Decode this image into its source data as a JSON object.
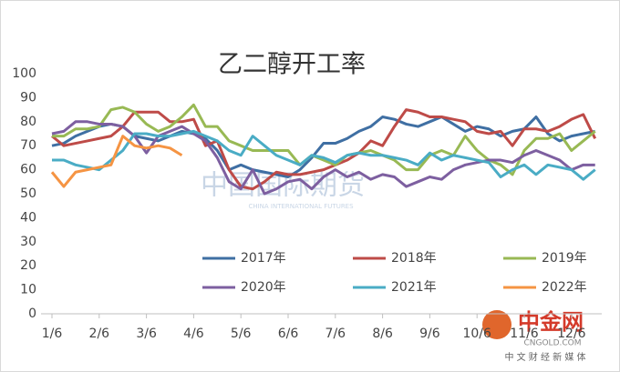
{
  "chart_data": {
    "type": "line",
    "title": "乙二醇开工率",
    "categories": [
      "1/6",
      null,
      null,
      null,
      "2/6",
      null,
      null,
      null,
      "3/6",
      null,
      null,
      null,
      "4/6",
      null,
      null,
      null,
      "5/6",
      null,
      null,
      null,
      "6/6",
      null,
      null,
      null,
      "7/6",
      null,
      null,
      null,
      "8/6",
      null,
      null,
      null,
      "9/6",
      null,
      null,
      null,
      "10/6",
      null,
      null,
      null,
      "11/6",
      null,
      null,
      null,
      "12/6",
      null,
      null
    ],
    "series": [
      {
        "name": "2017年",
        "color": "#3f6fa3",
        "values": [
          70,
          71,
          74,
          76,
          78,
          79,
          78,
          74,
          73,
          72,
          74,
          76,
          75,
          73,
          68,
          60,
          62,
          60,
          59,
          58,
          57,
          60,
          65,
          71,
          71,
          73,
          76,
          78,
          82,
          81,
          79,
          78,
          80,
          82,
          79,
          76,
          78,
          77,
          74,
          76,
          77,
          82,
          75,
          72,
          74,
          75,
          76
        ]
      },
      {
        "name": "2018年",
        "color": "#be4b48",
        "values": [
          74,
          70,
          71,
          72,
          73,
          74,
          78,
          84,
          84,
          84,
          80,
          80,
          81,
          70,
          72,
          60,
          53,
          52,
          55,
          59,
          58,
          58,
          59,
          60,
          62,
          64,
          67,
          72,
          70,
          78,
          85,
          84,
          82,
          82,
          81,
          80,
          76,
          75,
          76,
          70,
          77,
          77,
          76,
          78,
          81,
          83,
          73
        ]
      },
      {
        "name": "2019年",
        "color": "#98b954",
        "values": [
          74,
          74,
          77,
          77,
          78,
          85,
          86,
          84,
          79,
          76,
          78,
          82,
          87,
          78,
          78,
          72,
          70,
          68,
          68,
          68,
          68,
          62,
          66,
          64,
          62,
          66,
          67,
          68,
          66,
          64,
          60,
          60,
          66,
          68,
          66,
          74,
          68,
          64,
          62,
          58,
          68,
          73,
          73,
          75,
          68,
          72,
          76
        ]
      },
      {
        "name": "2020年",
        "color": "#7d5fa0",
        "values": [
          75,
          76,
          80,
          80,
          79,
          79,
          78,
          74,
          67,
          74,
          76,
          78,
          75,
          72,
          65,
          55,
          52,
          60,
          50,
          52,
          55,
          56,
          52,
          57,
          60,
          57,
          59,
          56,
          58,
          57,
          53,
          55,
          57,
          56,
          60,
          62,
          63,
          64,
          64,
          63,
          66,
          68,
          66,
          64,
          60,
          62,
          62
        ]
      },
      {
        "name": "2021年",
        "color": "#4aacc5",
        "values": [
          64,
          64,
          62,
          61,
          60,
          64,
          68,
          75,
          75,
          74,
          74,
          75,
          76,
          74,
          72,
          68,
          66,
          74,
          70,
          66,
          64,
          62,
          66,
          65,
          63,
          66,
          67,
          66,
          66,
          65,
          64,
          62,
          67,
          64,
          66,
          65,
          64,
          63,
          57,
          60,
          62,
          58,
          62,
          61,
          60,
          56,
          60
        ]
      },
      {
        "name": "2022年",
        "color": "#f59443",
        "values": [
          59,
          53,
          59,
          60,
          61,
          62,
          74,
          70,
          69,
          70,
          69,
          66,
          null,
          null,
          null,
          null,
          null,
          null,
          null,
          null,
          null,
          null,
          null,
          null,
          null,
          null,
          null,
          null,
          null,
          null,
          null,
          null,
          null,
          null,
          null,
          null,
          null,
          null,
          null,
          null,
          null,
          null,
          null,
          null,
          null,
          null,
          null
        ]
      }
    ],
    "ylim": [
      0,
      100
    ],
    "yticks": [
      0,
      10,
      20,
      30,
      40,
      50,
      60,
      70,
      80,
      90,
      100
    ],
    "grid": false,
    "annotations": [
      "中国国际期货",
      "CHINA INTERNATIONAL FUTURES",
      "中金网",
      "CNGOLD.COM",
      "中 文 财 经 新 媒 体"
    ]
  }
}
